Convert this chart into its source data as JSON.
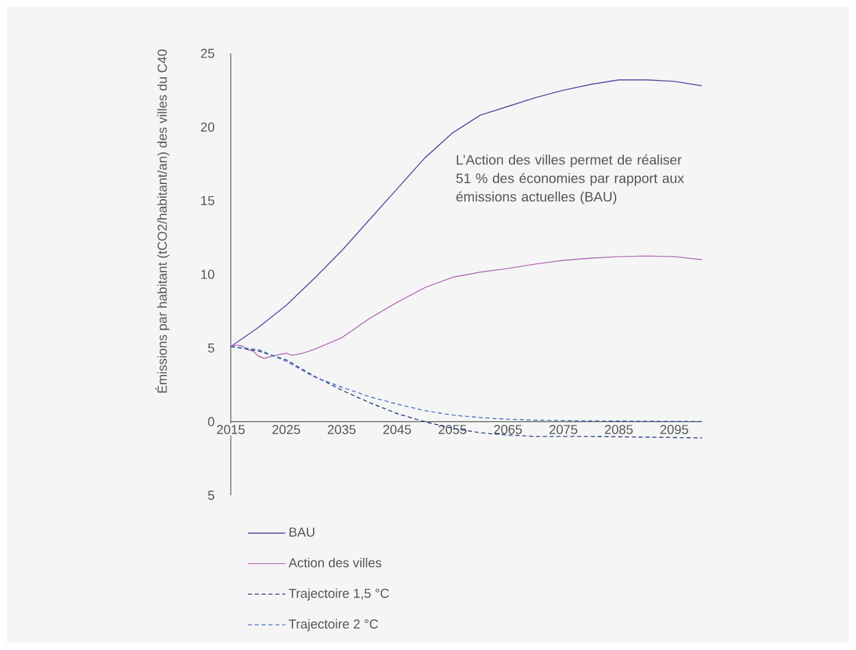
{
  "chart_data": {
    "type": "line",
    "ylabel": "Émissions par habitant (tCO2/habitant/an) des villes du C40",
    "annotations": [
      "L’Action des villes permet de réaliser 51 % des économies par rapport aux émissions actuelles (BAU)"
    ],
    "xlim": [
      2015,
      2100
    ],
    "ylim": [
      -5,
      25
    ],
    "xticks": [
      2015,
      2025,
      2035,
      2045,
      2055,
      2065,
      2075,
      2085,
      2095
    ],
    "yticks": [
      {
        "value": -5,
        "label": "5"
      },
      0,
      5,
      10,
      15,
      20,
      25
    ],
    "grid": false,
    "legend": "bottom",
    "series": [
      {
        "name": "BAU",
        "color": "#5b3a9c",
        "line_style": "solid",
        "x": [
          2015,
          2020,
          2025,
          2030,
          2035,
          2040,
          2045,
          2050,
          2055,
          2060,
          2065,
          2070,
          2075,
          2080,
          2085,
          2090,
          2095,
          2100
        ],
        "values": [
          5.1,
          6.4,
          7.9,
          9.7,
          11.6,
          13.7,
          15.8,
          17.9,
          19.6,
          20.8,
          21.4,
          22.0,
          22.5,
          22.9,
          23.2,
          23.2,
          23.1,
          22.8
        ]
      },
      {
        "name": "Action des villes",
        "color": "#b06ab3",
        "line_style": "solid",
        "x": [
          2015,
          2016,
          2017,
          2018,
          2019,
          2020,
          2021,
          2023,
          2025,
          2026,
          2028,
          2030,
          2035,
          2040,
          2045,
          2050,
          2055,
          2060,
          2065,
          2070,
          2075,
          2080,
          2085,
          2090,
          2095,
          2100
        ],
        "values": [
          5.1,
          5.2,
          5.15,
          4.9,
          4.8,
          4.45,
          4.3,
          4.5,
          4.65,
          4.5,
          4.65,
          4.9,
          5.7,
          7.0,
          8.1,
          9.1,
          9.8,
          10.15,
          10.4,
          10.7,
          10.95,
          11.1,
          11.2,
          11.25,
          11.2,
          11.0
        ]
      },
      {
        "name": "Trajectoire 1,5 °C",
        "color": "#1f3a7a",
        "line_style": "dashed",
        "x": [
          2015,
          2020,
          2025,
          2030,
          2035,
          2040,
          2045,
          2050,
          2055,
          2060,
          2065,
          2070,
          2080,
          2090,
          2100
        ],
        "values": [
          5.1,
          4.8,
          4.2,
          3.1,
          2.15,
          1.3,
          0.55,
          0.0,
          -0.45,
          -0.75,
          -0.9,
          -1.0,
          -1.0,
          -1.05,
          -1.1
        ]
      },
      {
        "name": "Trajectoire 2 °C",
        "color": "#4a6fc0",
        "line_style": "dashed",
        "x": [
          2015,
          2020,
          2025,
          2030,
          2035,
          2040,
          2045,
          2050,
          2055,
          2060,
          2065,
          2070,
          2080,
          2090,
          2100
        ],
        "values": [
          5.1,
          4.9,
          4.1,
          3.05,
          2.35,
          1.7,
          1.2,
          0.75,
          0.45,
          0.28,
          0.17,
          0.1,
          0.06,
          0.04,
          0.02
        ]
      }
    ]
  }
}
